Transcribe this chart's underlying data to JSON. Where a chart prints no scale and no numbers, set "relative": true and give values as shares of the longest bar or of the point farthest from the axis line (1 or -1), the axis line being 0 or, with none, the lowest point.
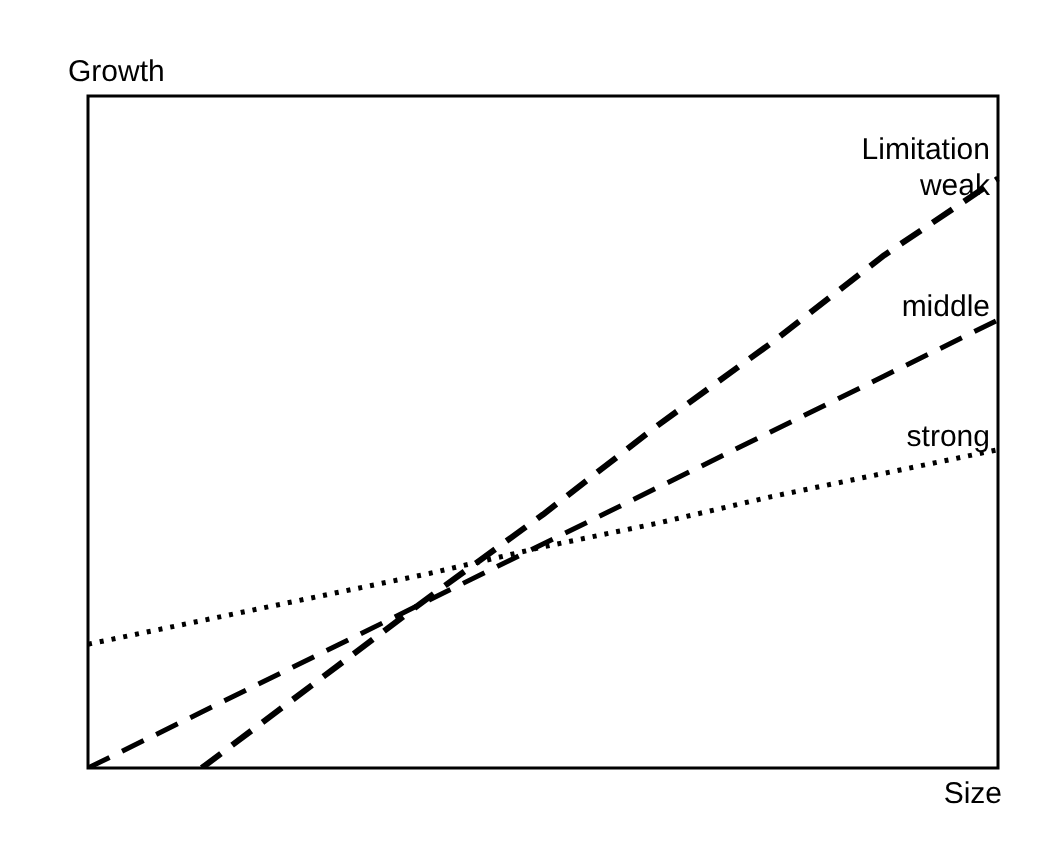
{
  "chart_data": {
    "type": "line",
    "relative": true,
    "xlabel": "Size",
    "ylabel": "Growth",
    "legend_title": "Limitation",
    "legend": false,
    "categories": [
      null,
      null,
      null,
      null,
      null,
      null,
      null,
      null,
      null
    ],
    "series": [
      {
        "name": "weak",
        "color": "#000000",
        "line_style": "dashed",
        "values": [
          null,
          0,
          0.145,
          0.29,
          0.43,
          0.58,
          0.72,
          0.87,
          1
        ]
      },
      {
        "name": "middle",
        "color": "#000000",
        "line_style": "dashed",
        "values": [
          0,
          0.095,
          0.19,
          0.285,
          0.38,
          0.475,
          0.57,
          0.665,
          0.76
        ]
      },
      {
        "name": "strong",
        "color": "#000000",
        "line_style": "dotted",
        "values": [
          0.21,
          0.25,
          0.29,
          0.33,
          0.375,
          0.415,
          0.46,
          0.5,
          0.54
        ]
      }
    ]
  }
}
